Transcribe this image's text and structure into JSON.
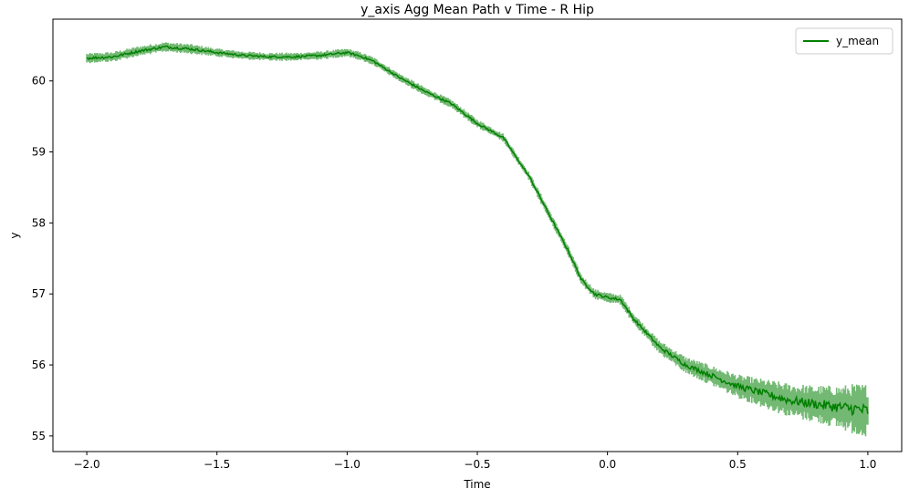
{
  "chart_data": {
    "type": "line",
    "title": "y_axis Agg Mean Path v Time - R Hip",
    "xlabel": "Time",
    "ylabel": "y",
    "xlim": [
      -2.13,
      1.13
    ],
    "ylim": [
      54.78,
      60.87
    ],
    "xticks": [
      -2.0,
      -1.5,
      -1.0,
      -0.5,
      0.0,
      0.5,
      1.0
    ],
    "xtick_labels": [
      "−2.0",
      "−1.5",
      "−1.0",
      "−0.5",
      "0.0",
      "0.5",
      "1.0"
    ],
    "yticks": [
      55,
      56,
      57,
      58,
      59,
      60
    ],
    "ytick_labels": [
      "55",
      "56",
      "57",
      "58",
      "59",
      "60"
    ],
    "grid": false,
    "legend_position": "top-right",
    "series": [
      {
        "name": "y_mean",
        "color": "#008000",
        "band_color": "#008000",
        "x": [
          -2.0,
          -1.9,
          -1.8,
          -1.7,
          -1.6,
          -1.5,
          -1.4,
          -1.3,
          -1.2,
          -1.1,
          -1.05,
          -1.0,
          -0.95,
          -0.9,
          -0.8,
          -0.7,
          -0.6,
          -0.5,
          -0.45,
          -0.4,
          -0.35,
          -0.3,
          -0.25,
          -0.2,
          -0.15,
          -0.1,
          -0.05,
          0.0,
          0.05,
          0.1,
          0.15,
          0.2,
          0.3,
          0.4,
          0.5,
          0.6,
          0.7,
          0.8,
          0.9,
          0.95,
          1.0
        ],
        "values": [
          60.32,
          60.34,
          60.42,
          60.48,
          60.45,
          60.4,
          60.36,
          60.34,
          60.34,
          60.36,
          60.38,
          60.4,
          60.35,
          60.28,
          60.05,
          59.85,
          59.68,
          59.4,
          59.3,
          59.2,
          58.92,
          58.65,
          58.3,
          57.95,
          57.6,
          57.2,
          57.0,
          56.95,
          56.92,
          56.65,
          56.45,
          56.25,
          56.0,
          55.85,
          55.7,
          55.6,
          55.5,
          55.45,
          55.4,
          55.38,
          55.35
        ],
        "band_halfwidth": [
          0.06,
          0.06,
          0.06,
          0.06,
          0.06,
          0.05,
          0.05,
          0.05,
          0.05,
          0.05,
          0.05,
          0.05,
          0.05,
          0.05,
          0.05,
          0.05,
          0.05,
          0.05,
          0.05,
          0.05,
          0.05,
          0.05,
          0.06,
          0.06,
          0.06,
          0.06,
          0.06,
          0.06,
          0.06,
          0.07,
          0.07,
          0.08,
          0.1,
          0.12,
          0.14,
          0.17,
          0.2,
          0.22,
          0.26,
          0.3,
          0.32
        ]
      }
    ]
  }
}
